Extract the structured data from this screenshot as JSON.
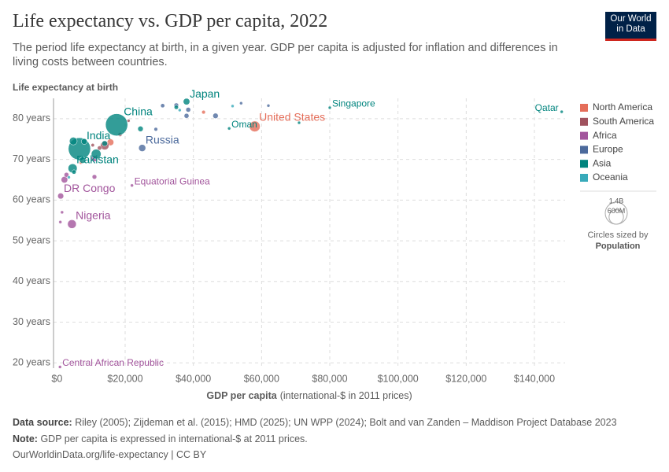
{
  "chart_data": {
    "type": "scatter",
    "title": "Life expectancy vs. GDP per capita, 2022",
    "subtitle": "The period life expectancy at birth, in a given year. GDP per capita is adjusted for inflation and differences in living costs between countries.",
    "y_label": "Life expectancy at birth",
    "x_label": "GDP per capita",
    "x_label_unit": "(international-$ in 2011 prices)",
    "xlim": [
      -1000,
      149000
    ],
    "ylim": [
      18.7,
      85
    ],
    "xticks": [
      {
        "value": 0,
        "label": "$0"
      },
      {
        "value": 20000,
        "label": "$20,000"
      },
      {
        "value": 40000,
        "label": "$40,000"
      },
      {
        "value": 60000,
        "label": "$60,000"
      },
      {
        "value": 80000,
        "label": "$80,000"
      },
      {
        "value": 100000,
        "label": "$100,000"
      },
      {
        "value": 120000,
        "label": "$120,000"
      },
      {
        "value": 140000,
        "label": "$140,000"
      }
    ],
    "yticks": [
      {
        "value": 20,
        "label": "20 years"
      },
      {
        "value": 30,
        "label": "30 years"
      },
      {
        "value": 40,
        "label": "40 years"
      },
      {
        "value": 50,
        "label": "50 years"
      },
      {
        "value": 60,
        "label": "60 years"
      },
      {
        "value": 70,
        "label": "70 years"
      },
      {
        "value": 80,
        "label": "80 years"
      }
    ],
    "grid": true,
    "legend": "right",
    "series": [
      {
        "name": "North America",
        "color": "#e56e5a",
        "x": [
          58000,
          15700,
          43000,
          7000
        ],
        "values": [
          78.1,
          74.2,
          81.6,
          69.2
        ],
        "sizes": [
          335000000,
          128000000,
          39000000,
          18000000
        ],
        "labels": [
          "United States",
          null,
          null,
          null
        ]
      },
      {
        "name": "South America",
        "color": "#a0525e",
        "x": [
          14000,
          18500,
          21000,
          12500,
          10500
        ],
        "values": [
          73.4,
          76.1,
          79.5,
          72.8,
          73.5
        ],
        "sizes": [
          215000000,
          46000000,
          19000000,
          52000000,
          34000000
        ],
        "labels": [
          null,
          null,
          null,
          null,
          null
        ]
      },
      {
        "name": "Africa",
        "color": "#a2559c",
        "x": [
          4400,
          1100,
          22000,
          900,
          2200,
          11000,
          2800,
          1500,
          1000,
          11000
        ],
        "values": [
          54.1,
          61.0,
          63.6,
          19.0,
          65.0,
          65.7,
          66.2,
          57.0,
          54.6,
          70.2
        ],
        "sizes": [
          219000000,
          102000000,
          1700000,
          5600000,
          123000000,
          60000000,
          65000000,
          3000000,
          17000000,
          111000000
        ],
        "labels": [
          "Nigeria",
          "DR Congo",
          "Equatorial Guinea",
          "Central African Republic",
          null,
          null,
          null,
          null,
          null,
          null
        ]
      },
      {
        "name": "Europe",
        "color": "#4c6a9c",
        "x": [
          25000,
          46500,
          38000,
          38500,
          35000,
          31000,
          29000,
          62000,
          54000
        ],
        "values": [
          72.8,
          80.7,
          80.7,
          82.2,
          83.3,
          83.2,
          77.4,
          83.2,
          83.8
        ],
        "sizes": [
          144000000,
          83000000,
          67000000,
          65000000,
          59000000,
          48000000,
          39000000,
          5400000,
          8700000
        ],
        "labels": [
          "Russia",
          null,
          null,
          null,
          null,
          null,
          null,
          null,
          null
        ]
      },
      {
        "name": "Asia",
        "color": "#00847e",
        "x": [
          17500,
          6600,
          4600,
          4800,
          11500,
          38000,
          80000,
          148000,
          50500,
          8000,
          7500,
          35000,
          14000,
          24500,
          5000,
          71000
        ],
        "values": [
          78.5,
          72.6,
          67.8,
          74.5,
          71.3,
          84.2,
          82.7,
          81.7,
          77.6,
          74.4,
          69.8,
          82.8,
          73.9,
          77.5,
          66.9,
          79.0
        ],
        "sizes": [
          1412000000,
          1417000000,
          236000000,
          171000000,
          276000000,
          124000000,
          5600000,
          2700000,
          4600000,
          98000000,
          115000000,
          52000000,
          88000000,
          85000000,
          54000000,
          4000000
        ],
        "labels": [
          "China",
          "India",
          "Pakistan",
          null,
          null,
          "Japan",
          "Singapore",
          "Qatar",
          "Oman",
          null,
          null,
          null,
          null,
          null,
          null,
          null
        ]
      },
      {
        "name": "Oceania",
        "color": "#38aaba",
        "x": [
          51500,
          36000,
          3500
        ],
        "values": [
          83.1,
          82.1,
          65.6
        ],
        "sizes": [
          26000000,
          5000000,
          10000000
        ],
        "labels": [
          null,
          null,
          null
        ]
      }
    ],
    "size_legend": {
      "values": [
        1400000000,
        600000000
      ],
      "labels": [
        "1.4B",
        "600M"
      ],
      "title": "Circles sized by",
      "variable": "Population"
    }
  },
  "footer": {
    "source_label": "Data source:",
    "source": "Riley (2005); Zijdeman et al. (2015); HMD (2025); UN WPP (2024); Bolt and van Zanden – Maddison Project Database 2023",
    "note_label": "Note:",
    "note": "GDP per capita is expressed in international-$ at 2011 prices.",
    "license": "OurWorldinData.org/life-expectancy | CC BY"
  },
  "logo": {
    "line1": "Our World",
    "line2": "in Data"
  }
}
